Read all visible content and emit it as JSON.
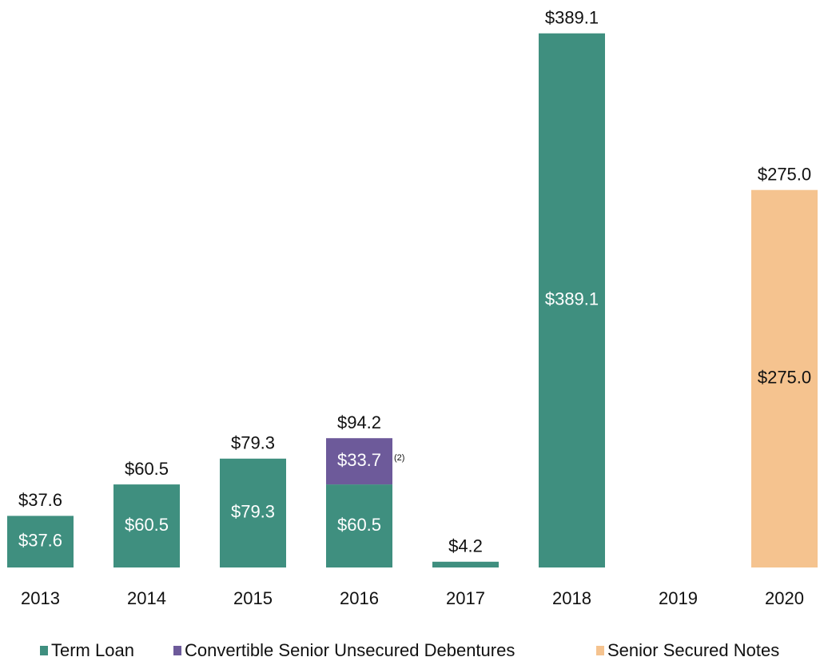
{
  "chart_data": {
    "type": "stacked_bar",
    "categories": [
      "2013",
      "2014",
      "2015",
      "2016",
      "2017",
      "2018",
      "2019",
      "2020"
    ],
    "series": [
      {
        "name": "Term Loan",
        "color": "#3f8f7f",
        "label_color": "#ffffff",
        "values": [
          37.6,
          60.5,
          79.3,
          60.5,
          4.2,
          389.1,
          null,
          null
        ],
        "value_labels": [
          "$37.6",
          "$60.5",
          "$79.3",
          "$60.5",
          null,
          "$389.1",
          null,
          null
        ]
      },
      {
        "name": "Convertible Senior Unsecured Debentures",
        "color": "#6d5a9a",
        "label_color": "#ffffff",
        "values": [
          null,
          null,
          null,
          33.7,
          null,
          null,
          null,
          null
        ],
        "value_labels": [
          null,
          null,
          null,
          "$33.7",
          null,
          null,
          null,
          null
        ]
      },
      {
        "name": "Senior Secured Notes",
        "color": "#f5c38f",
        "label_color": "#111111",
        "values": [
          null,
          null,
          null,
          null,
          null,
          null,
          null,
          275.0
        ],
        "value_labels": [
          null,
          null,
          null,
          null,
          null,
          null,
          null,
          "$275.0"
        ]
      }
    ],
    "totals": [
      37.6,
      60.5,
      79.3,
      94.2,
      4.2,
      389.1,
      null,
      275.0
    ],
    "total_labels": [
      "$37.6",
      "$60.5",
      "$79.3",
      "$94.2",
      "$4.2",
      "$389.1",
      null,
      "$275.0"
    ],
    "annotations": [
      "(2)"
    ],
    "ylim": [
      0,
      400
    ],
    "legend": "bottom"
  }
}
